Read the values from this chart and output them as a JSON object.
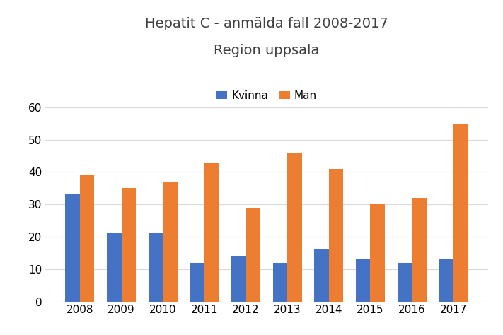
{
  "title_line1": "Hepatit C - anmälda fall 2008-2017",
  "title_line2": "Region uppsala",
  "years": [
    2008,
    2009,
    2010,
    2011,
    2012,
    2013,
    2014,
    2015,
    2016,
    2017
  ],
  "kvinna": [
    33,
    21,
    21,
    12,
    14,
    12,
    16,
    13,
    12,
    13
  ],
  "man": [
    39,
    35,
    37,
    43,
    29,
    46,
    41,
    30,
    32,
    55
  ],
  "kvinna_color": "#4472C4",
  "man_color": "#ED7D31",
  "kvinna_label": "Kvinna",
  "man_label": "Man",
  "ylim": [
    0,
    60
  ],
  "yticks": [
    0,
    10,
    20,
    30,
    40,
    50,
    60
  ],
  "background_color": "#FFFFFF",
  "grid_color": "#D9D9D9",
  "bar_width": 0.35,
  "title_fontsize": 14,
  "tick_fontsize": 11,
  "legend_fontsize": 11
}
